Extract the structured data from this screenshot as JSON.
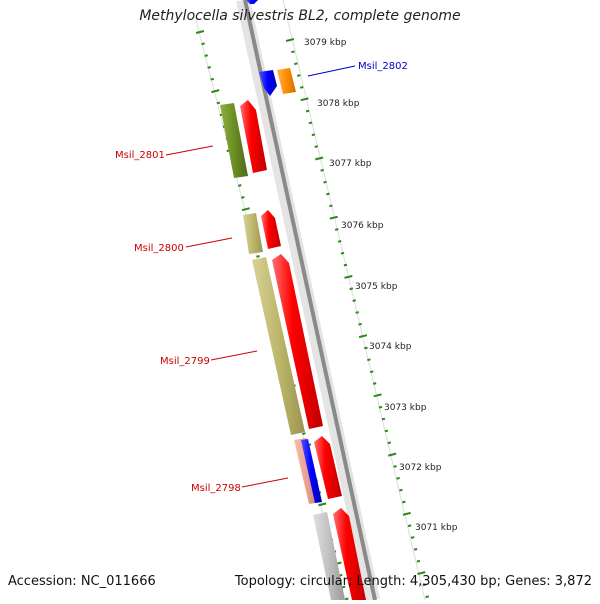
{
  "title": "Methylocella silvestris BL2, complete genome",
  "accession": "Accession: NC_011666",
  "topology": "Topology: circular; Length: 4,305,430 bp; Genes: 3,872",
  "kbp_ticks": [
    "3079 kbp",
    "3078 kbp",
    "3077 kbp",
    "3076 kbp",
    "3075 kbp",
    "3074 kbp",
    "3073 kbp",
    "3072 kbp",
    "3071 kbp"
  ],
  "gene_labels": [
    {
      "name": "Msil_2802",
      "color": "#0000cc"
    },
    {
      "name": "Msil_2801",
      "color": "#cc0000"
    },
    {
      "name": "Msil_2800",
      "color": "#cc0000"
    },
    {
      "name": "Msil_2799",
      "color": "#cc0000"
    },
    {
      "name": "Msil_2798",
      "color": "#cc0000"
    }
  ],
  "colors": {
    "backbone": "#8a8a8a",
    "tick_green": "#2a8a1a",
    "gene_red": "#ff0000",
    "gene_blue": "#0000ff",
    "gene_orange": "#ff8c00",
    "olive_dark": "#6b8e23",
    "khaki": "#bdb76b",
    "salmon": "#e8a090",
    "grey_gene": "#c0c0c0"
  }
}
